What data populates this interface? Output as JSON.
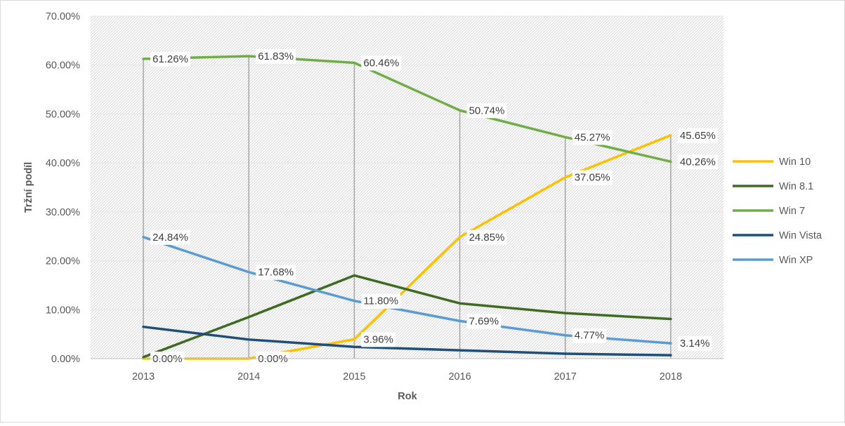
{
  "chart_data": {
    "type": "line",
    "xlabel": "Rok",
    "ylabel": "Tržní podíl",
    "categories": [
      "2013",
      "2014",
      "2015",
      "2016",
      "2017",
      "2018"
    ],
    "ylim": [
      0,
      70
    ],
    "y_ticks": [
      "0.00%",
      "10.00%",
      "20.00%",
      "30.00%",
      "40.00%",
      "50.00%",
      "60.00%",
      "70.00%"
    ],
    "grid": false,
    "legend_position": "right",
    "series": [
      {
        "name": "Win 10",
        "color": "#FFC000",
        "values": [
          0.0,
          0.0,
          3.96,
          24.85,
          37.05,
          45.65
        ],
        "labels": [
          "0.00%",
          "0.00%",
          "3.96%",
          "24.85%",
          "37.05%",
          "45.65%"
        ]
      },
      {
        "name": "Win 8.1",
        "color": "#3E6B22",
        "values": [
          0.3,
          8.5,
          17.0,
          11.3,
          9.3,
          8.1
        ],
        "labels": []
      },
      {
        "name": "Win 7",
        "color": "#70AD47",
        "values": [
          61.26,
          61.83,
          60.46,
          50.74,
          45.27,
          40.26
        ],
        "labels": [
          "61.26%",
          "61.83%",
          "60.46%",
          "50.74%",
          "45.27%",
          "40.26%"
        ]
      },
      {
        "name": "Win Vista",
        "color": "#1F4E79",
        "values": [
          6.5,
          3.9,
          2.4,
          1.7,
          1.0,
          0.7
        ],
        "labels": []
      },
      {
        "name": "Win XP",
        "color": "#5B9BD5",
        "values": [
          24.84,
          17.68,
          11.8,
          7.69,
          4.77,
          3.14
        ],
        "labels": [
          "24.84%",
          "17.68%",
          "11.80%",
          "7.69%",
          "4.77%",
          "3.14%"
        ]
      }
    ]
  }
}
